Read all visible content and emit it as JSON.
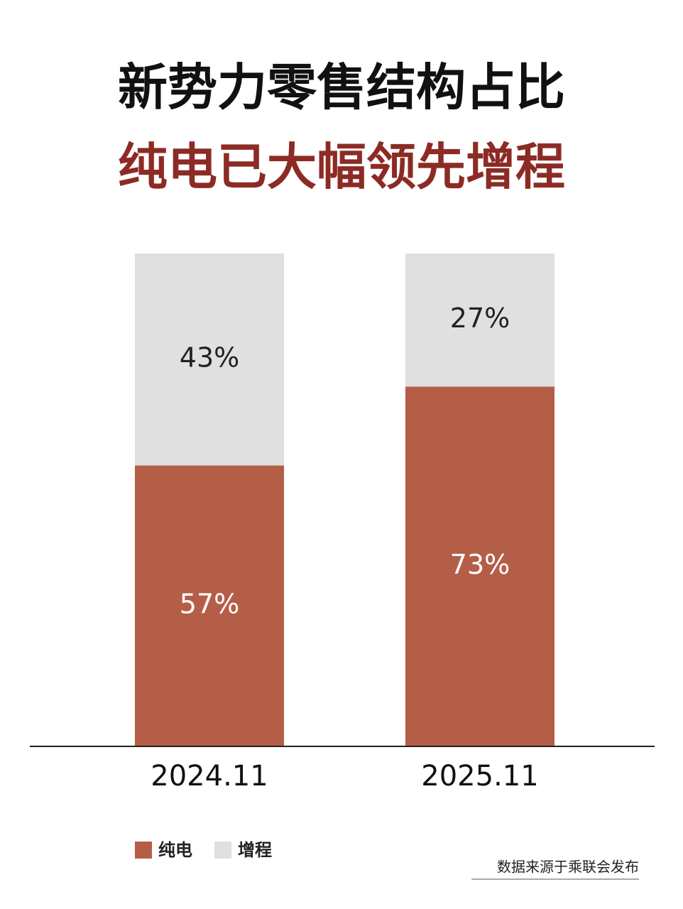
{
  "chart_data": {
    "type": "stacked_bar",
    "title": "新势力零售结构占比",
    "subtitle": "纯电已大幅领先增程",
    "categories": [
      "2024.11",
      "2025.11"
    ],
    "series": [
      {
        "name": "纯电",
        "color": "#b55e47",
        "values": [
          57,
          73
        ],
        "value_labels": [
          "57%",
          "73%"
        ],
        "label_color": "#ffffff"
      },
      {
        "name": "增程",
        "color": "#e0e0e0",
        "values": [
          43,
          27
        ],
        "value_labels": [
          "43%",
          "27%"
        ],
        "label_color": "#222222"
      }
    ],
    "subtitle_color": "#8c2b24",
    "legend": "bottom-left",
    "source": "数据来源于乘联会发布"
  }
}
